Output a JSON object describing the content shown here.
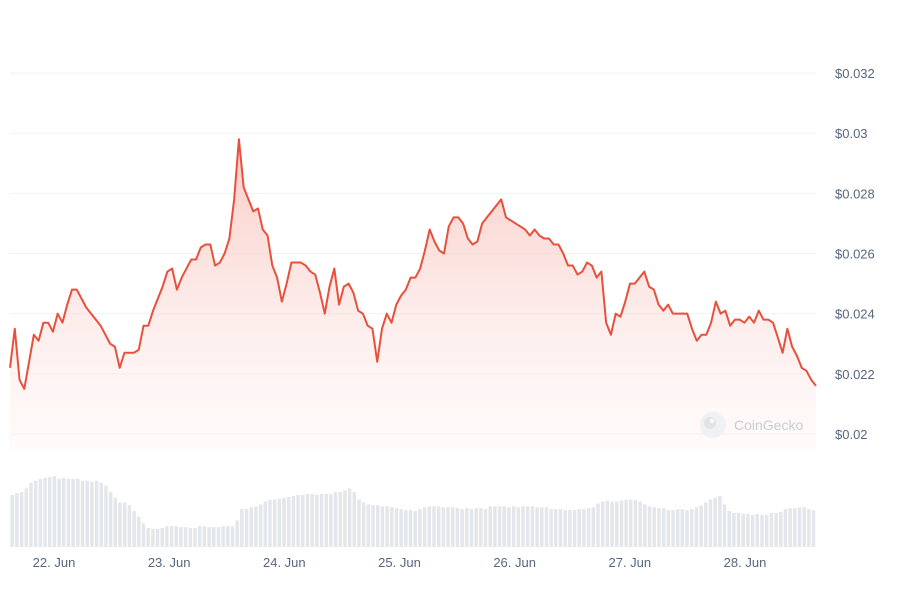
{
  "chart_data": {
    "type": "area",
    "title": "",
    "xlabel": "",
    "ylabel": "",
    "ylim": [
      0.0195,
      0.0331
    ],
    "x_start_label": "21. Jun 18:00",
    "x_end_label": "28. Jun 18:00",
    "y_tick_labels": [
      "$0.02",
      "$0.022",
      "$0.024",
      "$0.026",
      "$0.028",
      "$0.03",
      "$0.032"
    ],
    "y_tick_values": [
      0.02,
      0.022,
      0.024,
      0.026,
      0.028,
      0.03,
      0.032
    ],
    "x_tick_labels": [
      "22. Jun",
      "23. Jun",
      "24. Jun",
      "25. Jun",
      "26. Jun",
      "27. Jun",
      "28. Jun"
    ],
    "price": [
      0.0222,
      0.0235,
      0.0218,
      0.0215,
      0.0224,
      0.0233,
      0.0231,
      0.0237,
      0.0237,
      0.0234,
      0.024,
      0.0237,
      0.0243,
      0.0248,
      0.0248,
      0.0245,
      0.0242,
      0.024,
      0.0238,
      0.0236,
      0.0233,
      0.023,
      0.0229,
      0.0222,
      0.0227,
      0.0227,
      0.0227,
      0.0228,
      0.0236,
      0.0236,
      0.0241,
      0.0245,
      0.0249,
      0.0254,
      0.0255,
      0.0248,
      0.0252,
      0.0255,
      0.0258,
      0.0258,
      0.0262,
      0.0263,
      0.0263,
      0.0256,
      0.0257,
      0.026,
      0.0265,
      0.0278,
      0.0298,
      0.0282,
      0.0278,
      0.0274,
      0.0275,
      0.0268,
      0.0266,
      0.0256,
      0.0252,
      0.0244,
      0.025,
      0.0257,
      0.0257,
      0.0257,
      0.0256,
      0.0254,
      0.0253,
      0.0247,
      0.024,
      0.0249,
      0.0255,
      0.0243,
      0.0249,
      0.025,
      0.0247,
      0.0241,
      0.024,
      0.0236,
      0.0235,
      0.0224,
      0.0235,
      0.024,
      0.0237,
      0.0243,
      0.0246,
      0.0248,
      0.0252,
      0.0252,
      0.0255,
      0.0261,
      0.0268,
      0.0264,
      0.0261,
      0.026,
      0.0269,
      0.0272,
      0.0272,
      0.027,
      0.0265,
      0.0263,
      0.0264,
      0.027,
      0.0272,
      0.0274,
      0.0276,
      0.0278,
      0.0272,
      0.0271,
      0.027,
      0.0269,
      0.0268,
      0.0266,
      0.0268,
      0.0266,
      0.0265,
      0.0265,
      0.0263,
      0.0263,
      0.026,
      0.0256,
      0.0256,
      0.0253,
      0.0254,
      0.0257,
      0.0256,
      0.0252,
      0.0254,
      0.0237,
      0.0233,
      0.024,
      0.0239,
      0.0244,
      0.025,
      0.025,
      0.0252,
      0.0254,
      0.0249,
      0.0248,
      0.0243,
      0.0241,
      0.0243,
      0.024,
      0.024,
      0.024,
      0.024,
      0.0235,
      0.0231,
      0.0233,
      0.0233,
      0.0237,
      0.0244,
      0.024,
      0.0241,
      0.0236,
      0.0238,
      0.0238,
      0.0237,
      0.0239,
      0.0237,
      0.0241,
      0.0238,
      0.0238,
      0.0237,
      0.0232,
      0.0227,
      0.0235,
      0.0229,
      0.0226,
      0.0222,
      0.0221,
      0.0218,
      0.0216
    ],
    "volume_relative": [
      0.55,
      0.57,
      0.58,
      0.62,
      0.68,
      0.7,
      0.72,
      0.73,
      0.74,
      0.75,
      0.72,
      0.73,
      0.72,
      0.72,
      0.72,
      0.7,
      0.7,
      0.69,
      0.7,
      0.68,
      0.65,
      0.58,
      0.52,
      0.47,
      0.47,
      0.44,
      0.38,
      0.32,
      0.25,
      0.2,
      0.19,
      0.19,
      0.2,
      0.22,
      0.22,
      0.22,
      0.21,
      0.21,
      0.2,
      0.2,
      0.22,
      0.22,
      0.21,
      0.21,
      0.21,
      0.22,
      0.22,
      0.22,
      0.28,
      0.4,
      0.4,
      0.42,
      0.43,
      0.45,
      0.48,
      0.5,
      0.5,
      0.51,
      0.52,
      0.53,
      0.54,
      0.55,
      0.55,
      0.56,
      0.56,
      0.55,
      0.56,
      0.56,
      0.56,
      0.58,
      0.58,
      0.6,
      0.62,
      0.58,
      0.5,
      0.47,
      0.45,
      0.44,
      0.44,
      0.43,
      0.43,
      0.42,
      0.41,
      0.4,
      0.39,
      0.39,
      0.38,
      0.4,
      0.42,
      0.43,
      0.43,
      0.43,
      0.42,
      0.42,
      0.42,
      0.41,
      0.4,
      0.41,
      0.4,
      0.41,
      0.41,
      0.4,
      0.43,
      0.43,
      0.43,
      0.43,
      0.42,
      0.43,
      0.42,
      0.43,
      0.43,
      0.43,
      0.42,
      0.42,
      0.42,
      0.4,
      0.4,
      0.4,
      0.39,
      0.39,
      0.39,
      0.4,
      0.4,
      0.41,
      0.42,
      0.46,
      0.48,
      0.49,
      0.48,
      0.48,
      0.49,
      0.5,
      0.5,
      0.5,
      0.48,
      0.45,
      0.43,
      0.42,
      0.41,
      0.41,
      0.39,
      0.39,
      0.4,
      0.4,
      0.39,
      0.4,
      0.42,
      0.44,
      0.47,
      0.5,
      0.52,
      0.54,
      0.45,
      0.38,
      0.36,
      0.36,
      0.35,
      0.35,
      0.34,
      0.35,
      0.34,
      0.34,
      0.36,
      0.36,
      0.37,
      0.4,
      0.41,
      0.41,
      0.42,
      0.42,
      0.4,
      0.39
    ],
    "grid": true,
    "y_axis_side": "right",
    "colors": {
      "line": "#e8503e",
      "area_top": "#f8c7c0",
      "volume_bar": "#e3e6ea",
      "grid": "#eff2f5",
      "tick_text": "#58667e"
    }
  },
  "watermark": {
    "label": "CoinGecko",
    "icon": "coingecko-logo-icon"
  }
}
